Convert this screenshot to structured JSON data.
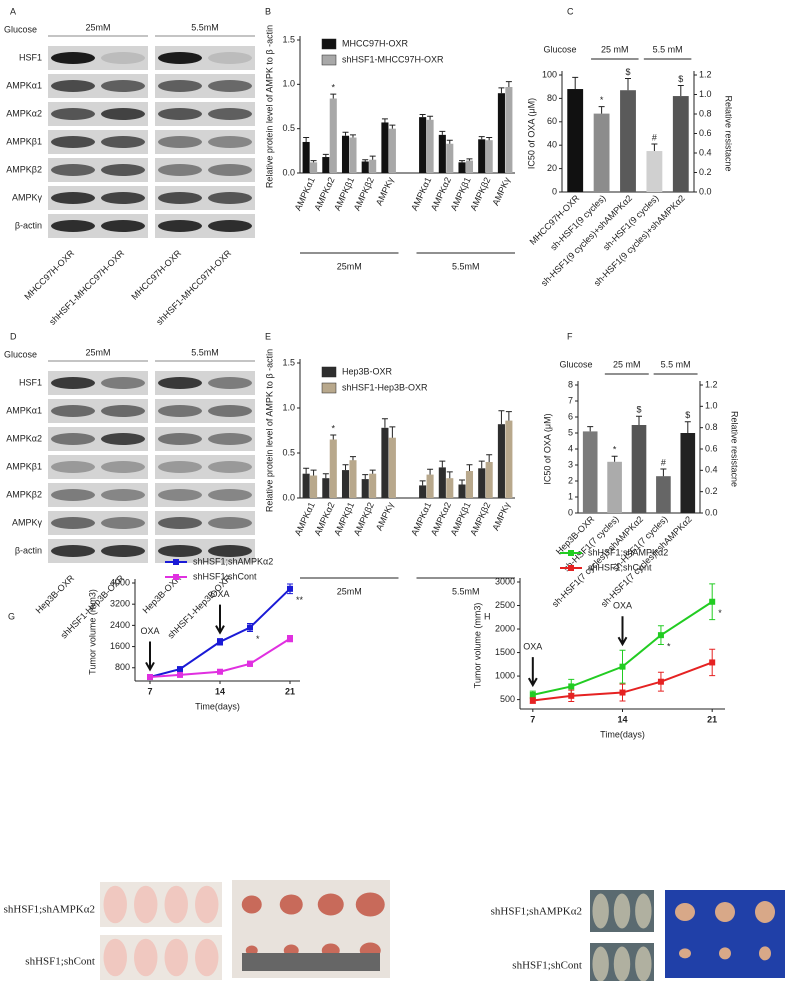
{
  "blots": [
    {
      "label": "A",
      "glucose": "Glucose",
      "conditions": [
        "25mM",
        "5.5mM"
      ],
      "rows": [
        "HSF1",
        "AMPKα1",
        "AMPKα2",
        "AMPKβ1",
        "AMPKβ2",
        "AMPKγ",
        "β-actin"
      ],
      "lanes": [
        "MHCC97H-OXR",
        "shHSF1-MHCC97H-OXR",
        "MHCC97H-OXR",
        "shHSF1-MHCC97H-OXR"
      ]
    },
    {
      "label": "D",
      "glucose": "Glucose",
      "conditions": [
        "25mM",
        "5.5mM"
      ],
      "rows": [
        "HSF1",
        "AMPKα1",
        "AMPKα2",
        "AMPKβ1",
        "AMPKβ2",
        "AMPKγ",
        "β-actin"
      ],
      "lanes": [
        "Hep3B-OXR",
        "shHSF1-Hep3B-OXR",
        "Hep3B-OXR",
        "shHSF1-Hep3B-OXR"
      ]
    }
  ],
  "chart_data": [
    {
      "type": "bar",
      "label": "B",
      "ylabel": "Relative protein level of AMPK to β -actin",
      "categories": [
        "AMPKα1",
        "AMPKα2",
        "AMPKβ1",
        "AMPKβ2",
        "AMPKγ",
        "AMPKα1",
        "AMPKα2",
        "AMPKβ1",
        "AMPKβ2",
        "AMPKγ"
      ],
      "groups": [
        "25mM",
        "5.5mM"
      ],
      "series": [
        {
          "name": "MHCC97H-OXR",
          "color": "#111111",
          "values": [
            0.35,
            0.18,
            0.42,
            0.13,
            0.57,
            0.63,
            0.43,
            0.12,
            0.38,
            0.9
          ],
          "errors": [
            0.05,
            0.03,
            0.04,
            0.02,
            0.04,
            0.03,
            0.04,
            0.02,
            0.03,
            0.06
          ]
        },
        {
          "name": "shHSF1-MHCC97H-OXR",
          "color": "#a8a8a8",
          "values": [
            0.12,
            0.84,
            0.4,
            0.15,
            0.5,
            0.6,
            0.33,
            0.14,
            0.37,
            0.97
          ],
          "errors": [
            0.02,
            0.05,
            0.03,
            0.04,
            0.04,
            0.04,
            0.04,
            0.02,
            0.03,
            0.06
          ],
          "markers": [
            null,
            "*",
            null,
            null,
            null,
            null,
            null,
            null,
            null,
            null
          ]
        }
      ],
      "ylim": [
        0,
        1.5
      ],
      "yticks": [
        {
          "value": 0,
          "label": "0.0"
        },
        0.5,
        {
          "value": 1,
          "label": "1.0"
        },
        1.5
      ]
    },
    {
      "type": "bar",
      "label": "C",
      "ylabel": "IC50 of OXA (μM)",
      "y2label": "Relative resistacne",
      "header": {
        "label": "Glucose",
        "groups": [
          "25 mM",
          "5.5 mM"
        ]
      },
      "categories": [
        "MHCC97H-OXR",
        "sh-HSF1(9 cycles)",
        "sh-HSF1(9 cycles)+shAMPKα2",
        "sh-HSF1(9 cycles)",
        "sh-HSF1(9 cycles)+shAMPKα2"
      ],
      "series": [
        {
          "colors": [
            "#111111",
            "#8c8c8c",
            "#5a5a5a",
            "#d0d0d0",
            "#555555"
          ],
          "values": [
            88,
            67,
            87,
            35,
            82
          ],
          "errors": [
            10,
            6,
            10,
            6,
            9
          ],
          "markers": [
            null,
            "*",
            "$",
            "#",
            "$"
          ]
        }
      ],
      "ylim": [
        0,
        100
      ],
      "yticks": [
        0,
        20,
        40,
        60,
        80,
        100
      ],
      "y2lim": [
        0,
        1.2
      ],
      "y2ticks": [
        {
          "value": 0,
          "label": "0.0"
        },
        0.2,
        0.4,
        0.6,
        0.8,
        {
          "value": 1,
          "label": "1.0"
        },
        1.2
      ]
    },
    {
      "type": "bar",
      "label": "E",
      "ylabel": "Relative protein level of AMPK to β -actin",
      "categories": [
        "AMPKα1",
        "AMPKα2",
        "AMPKβ1",
        "AMPKβ2",
        "AMPKγ",
        "AMPKα1",
        "AMPKα2",
        "AMPKβ1",
        "AMPKβ2",
        "AMPKγ"
      ],
      "groups": [
        "25mM",
        "5.5mM"
      ],
      "series": [
        {
          "name": "Hep3B-OXR",
          "color": "#2e2e2e",
          "values": [
            0.27,
            0.22,
            0.31,
            0.21,
            0.78,
            0.14,
            0.34,
            0.15,
            0.33,
            0.82
          ],
          "errors": [
            0.06,
            0.05,
            0.06,
            0.05,
            0.1,
            0.05,
            0.07,
            0.05,
            0.08,
            0.15
          ]
        },
        {
          "name": "shHSF1-Hep3B-OXR",
          "color": "#b8a88c",
          "values": [
            0.25,
            0.65,
            0.42,
            0.27,
            0.67,
            0.26,
            0.22,
            0.3,
            0.4,
            0.86
          ],
          "errors": [
            0.06,
            0.05,
            0.04,
            0.04,
            0.12,
            0.06,
            0.07,
            0.07,
            0.08,
            0.1
          ],
          "markers": [
            null,
            "*",
            null,
            null,
            null,
            null,
            null,
            null,
            null,
            null
          ]
        }
      ],
      "ylim": [
        0,
        1.5
      ],
      "yticks": [
        {
          "value": 0,
          "label": "0.0"
        },
        0.5,
        {
          "value": 1,
          "label": "1.0"
        },
        1.5
      ]
    },
    {
      "type": "bar",
      "label": "F",
      "ylabel": "IC50 of OXA (μM)",
      "y2label": "Relative resistacne",
      "header": {
        "label": "Glucose",
        "groups": [
          "25 mM",
          "5.5 mM"
        ]
      },
      "categories": [
        "Hep3B-OXR",
        "sh-HSF1(7 cycles)",
        "sh-HSF1(7 cycles)+shAMPKα2",
        "sh-HSF1(7 cycles)",
        "sh-HSF1(7 cycles)+shAMPKα2"
      ],
      "series": [
        {
          "colors": [
            "#7a7a7a",
            "#ababab",
            "#555555",
            "#666666",
            "#222222"
          ],
          "values": [
            5.1,
            3.2,
            5.5,
            2.3,
            5.0
          ],
          "errors": [
            0.3,
            0.35,
            0.55,
            0.45,
            0.7
          ],
          "markers": [
            null,
            "*",
            "$",
            "#",
            "$"
          ]
        }
      ],
      "ylim": [
        0,
        8
      ],
      "yticks": [
        0,
        1,
        2,
        3,
        4,
        5,
        6,
        7,
        8
      ],
      "y2lim": [
        0,
        1.2
      ],
      "y2ticks": [
        {
          "value": 0,
          "label": "0.0"
        },
        0.2,
        0.4,
        0.6,
        0.8,
        {
          "value": 1,
          "label": "1.0"
        },
        1.2
      ]
    },
    {
      "type": "line",
      "label": "G",
      "xlabel": "Time(days)",
      "ylabel": "Tumor volume (mm3)",
      "x": [
        7,
        10,
        14,
        17,
        21
      ],
      "series": [
        {
          "name": "shHSF1;shAMPKα2",
          "color": "#1a1ad6",
          "values": [
            450,
            750,
            1780,
            2320,
            3780
          ],
          "errors": [
            60,
            60,
            120,
            150,
            180
          ],
          "markers": [
            null,
            null,
            null,
            "*",
            "**"
          ]
        },
        {
          "name": "shHSF1;shCont",
          "color": "#e030e0",
          "values": [
            450,
            530,
            650,
            950,
            1900
          ],
          "errors": [
            40,
            40,
            60,
            100,
            120
          ]
        }
      ],
      "events": [
        {
          "text": "OXA",
          "x": 7
        },
        {
          "text": "OXA",
          "x": 14
        }
      ],
      "xlim": [
        5.5,
        22
      ],
      "xticks": [
        7,
        14,
        21
      ],
      "ylim": [
        300,
        4000
      ],
      "yticks": [
        800,
        1600,
        2400,
        3200,
        4000
      ]
    },
    {
      "type": "line",
      "label": "H",
      "xlabel": "Time(days)",
      "ylabel": "Tumor volume (mm3)",
      "x": [
        7,
        10,
        14,
        17,
        21
      ],
      "series": [
        {
          "name": "shHSF1;shAMPKα2",
          "color": "#22cc22",
          "values": [
            600,
            780,
            1200,
            1870,
            2580
          ],
          "errors": [
            80,
            150,
            350,
            200,
            380
          ],
          "markers": [
            null,
            null,
            null,
            "*",
            "*"
          ]
        },
        {
          "name": "shHSF1;shCont",
          "color": "#e52222",
          "values": [
            480,
            580,
            650,
            880,
            1290
          ],
          "errors": [
            60,
            120,
            180,
            200,
            280
          ]
        }
      ],
      "events": [
        {
          "text": "OXA",
          "x": 7
        },
        {
          "text": "OXA",
          "x": 14
        }
      ],
      "xlim": [
        6,
        22
      ],
      "xticks": [
        7,
        14,
        21
      ],
      "ylim": [
        300,
        3000
      ],
      "yticks": [
        500,
        1000,
        1500,
        2000,
        2500,
        3000
      ]
    }
  ],
  "photos": [
    {
      "labels": [
        "shHSF1;shAMPKα2",
        "shHSF1;shCont"
      ]
    },
    {
      "labels": [
        "shHSF1;shAMPKα2",
        "shHSF1;shCont"
      ]
    }
  ]
}
